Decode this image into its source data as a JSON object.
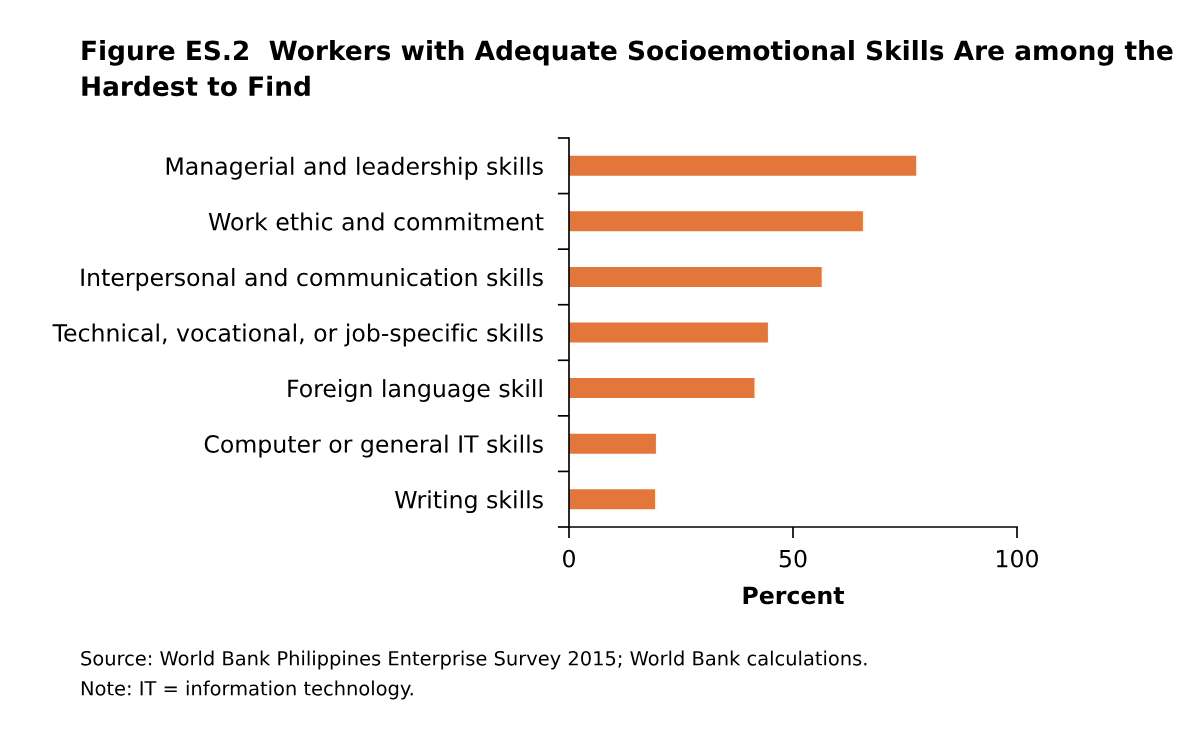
{
  "chart_data": {
    "type": "bar",
    "orientation": "horizontal",
    "title": "Figure ES.2  Workers with Adequate Socioemotional Skills Are among the Hardest to Find",
    "categories": [
      "Managerial and leadership skills",
      "Work ethic and commitment",
      "Interpersonal and communication skills",
      "Technical, vocational, or job-specific skills",
      "Foreign language skill",
      "Computer or general IT skills",
      "Writing skills"
    ],
    "values": [
      77.5,
      65.6,
      56.4,
      44.4,
      41.4,
      19.4,
      19.2
    ],
    "color": "#e3773b",
    "xlabel": "Percent",
    "xlim": [
      0,
      100
    ],
    "xticks": [
      0,
      50,
      100
    ],
    "grid": false,
    "legend": false,
    "annotations": [
      "Source: World Bank Philippines Enterprise Survey 2015; World Bank calculations.",
      "Note: IT = information technology."
    ]
  }
}
